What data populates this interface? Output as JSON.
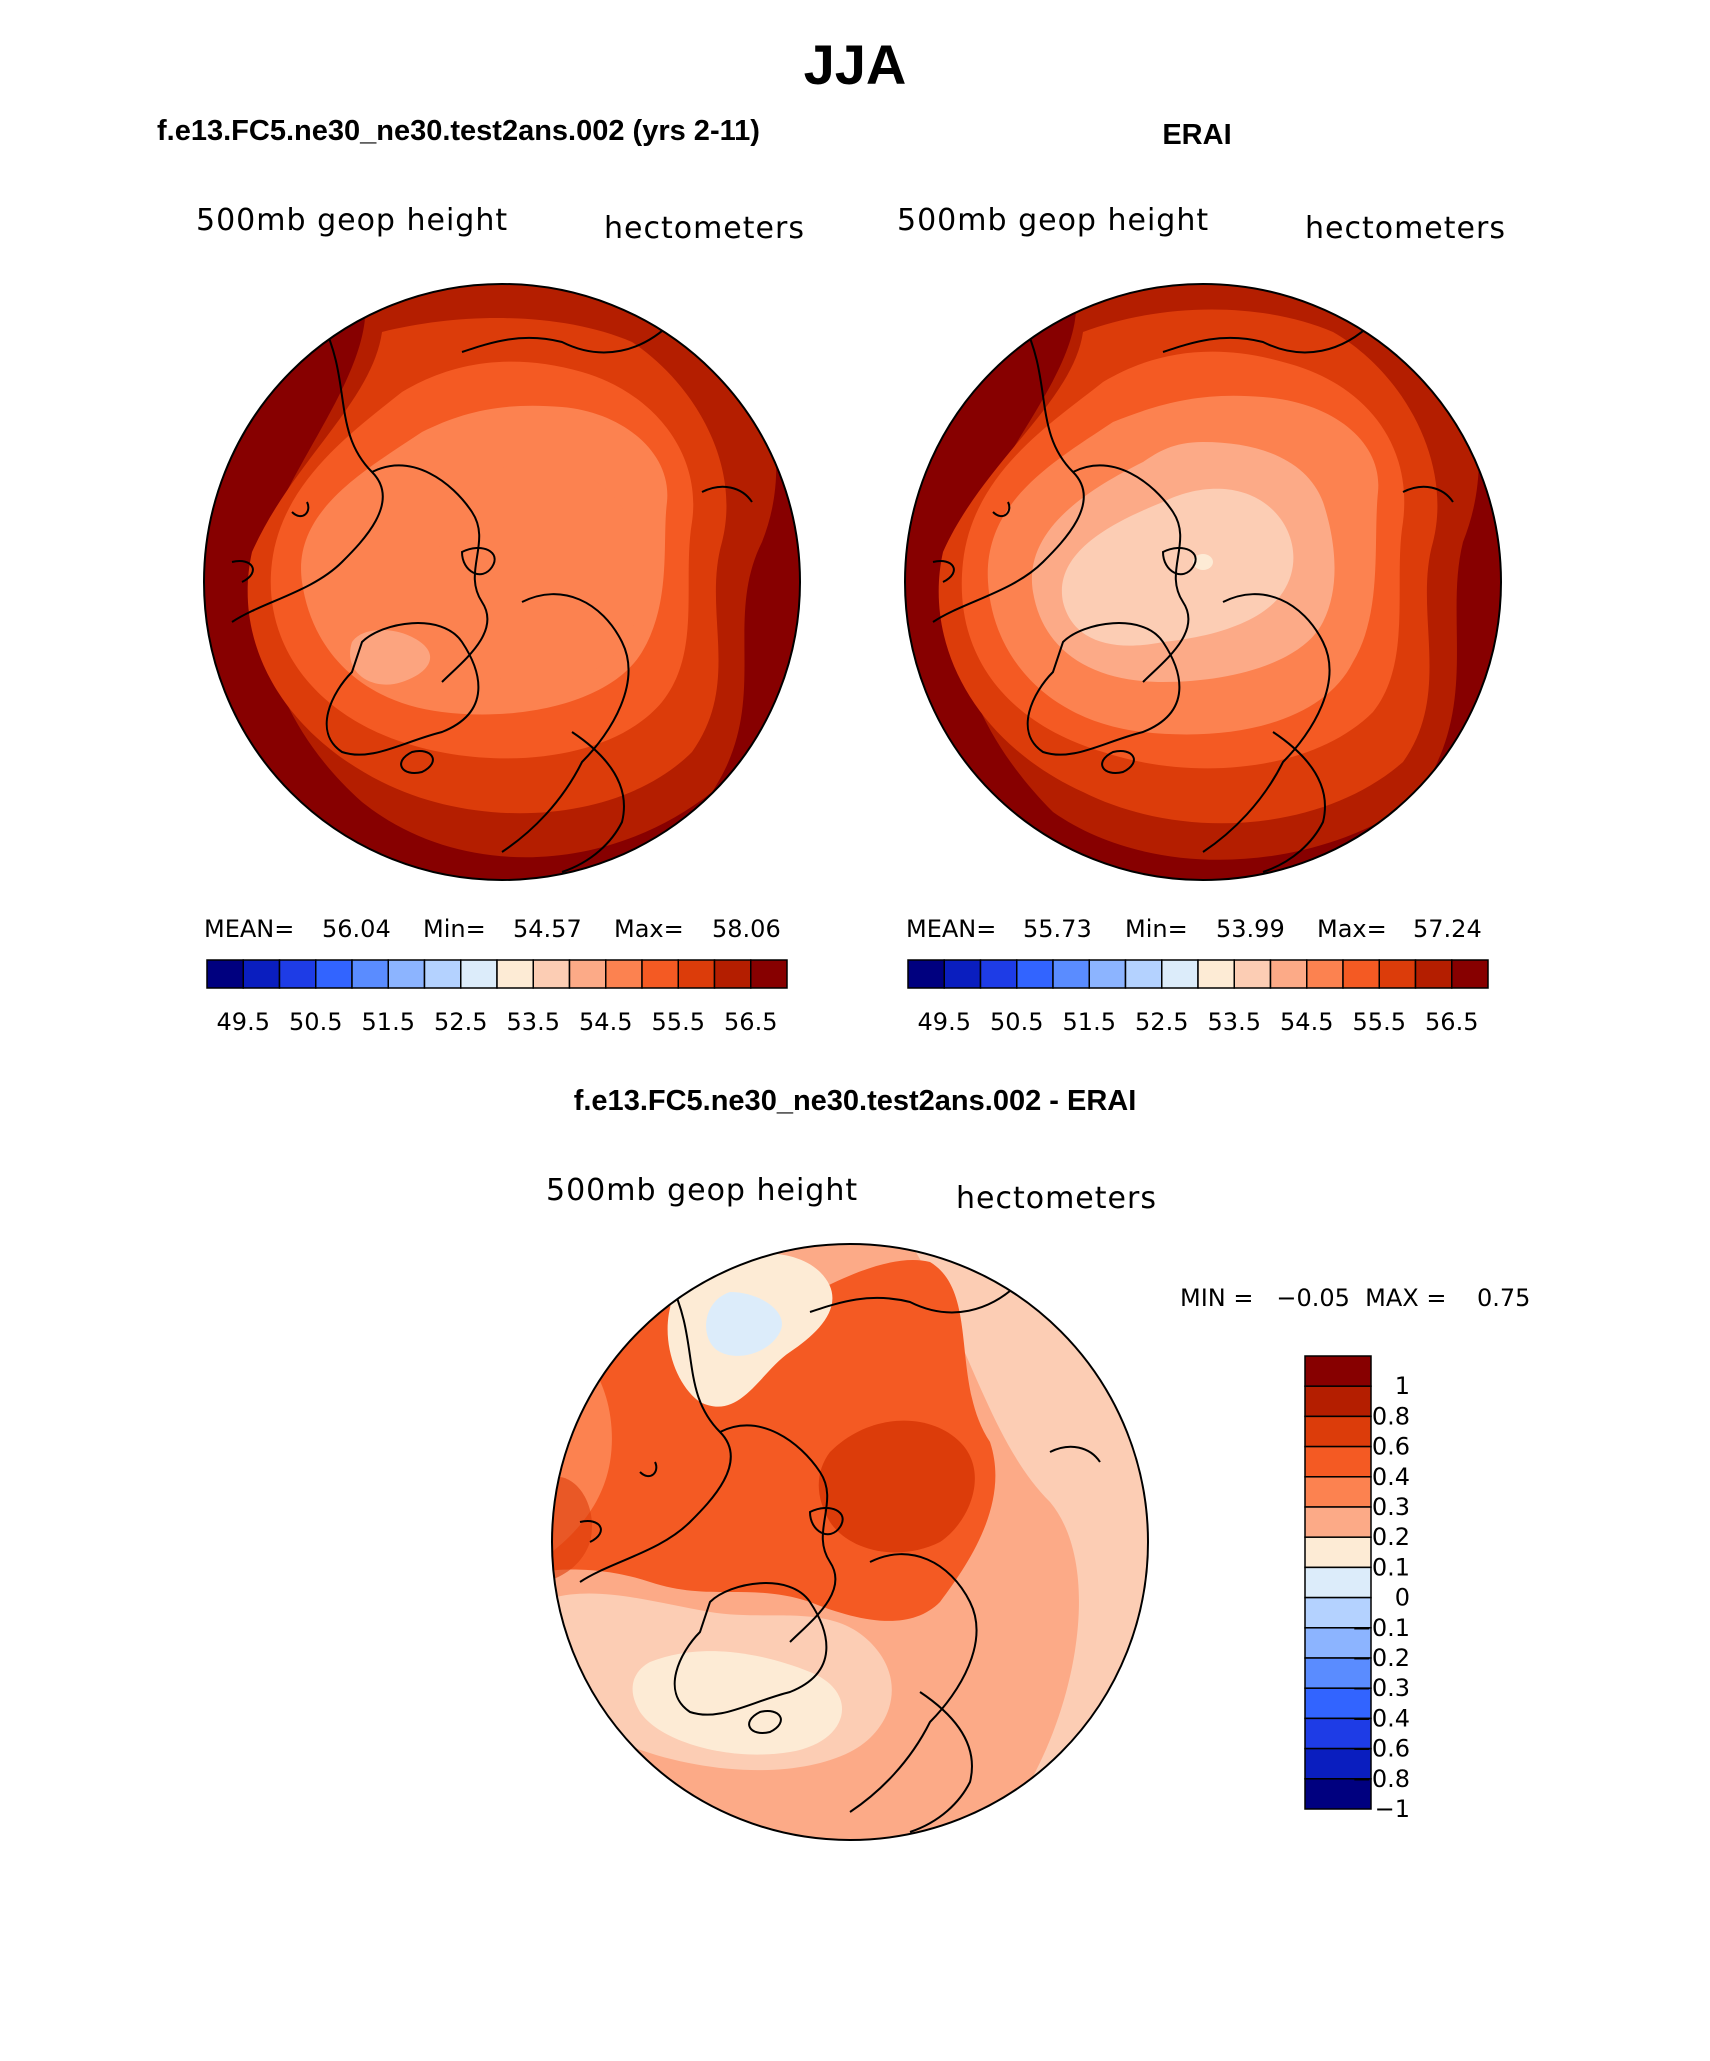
{
  "title": "JJA",
  "colors": {
    "abs_scale": [
      "#00007f",
      "#0a1ebf",
      "#1e3ce6",
      "#3264ff",
      "#5a8cff",
      "#8cb4ff",
      "#b4d2ff",
      "#dcecfa",
      "#fdebd5",
      "#fccdb4",
      "#fcaa87",
      "#fc8250",
      "#f45a23",
      "#dc3c0a",
      "#b41e00",
      "#870000"
    ],
    "diff_scale": [
      "#870000",
      "#b41e00",
      "#dc3c0a",
      "#f45a23",
      "#fc8250",
      "#fcaa87",
      "#fdebd5",
      "#dcecfa",
      "#b4d2ff",
      "#8cb4ff",
      "#5a8cff",
      "#3264ff",
      "#1e3ce6",
      "#0a1ebf",
      "#00007f"
    ]
  },
  "panels": {
    "model": {
      "case": "f.e13.FC5.ne30_ne30.test2ans.002 (yrs 2-11)",
      "field": "500mb geop height",
      "units": "hectometers",
      "mean_label": "MEAN=",
      "mean": "56.04",
      "min_label": "Min=",
      "min": "54.57",
      "max_label": "Max=",
      "max": "58.06",
      "ticks": [
        "49.5",
        "50.5",
        "51.5",
        "52.5",
        "53.5",
        "54.5",
        "55.5",
        "56.5"
      ]
    },
    "obs": {
      "case": "ERAI",
      "field": "500mb geop height",
      "units": "hectometers",
      "mean_label": "MEAN=",
      "mean": "55.73",
      "min_label": "Min=",
      "min": "53.99",
      "max_label": "Max=",
      "max": "57.24",
      "ticks": [
        "49.5",
        "50.5",
        "51.5",
        "52.5",
        "53.5",
        "54.5",
        "55.5",
        "56.5"
      ]
    },
    "diff": {
      "case": "f.e13.FC5.ne30_ne30.test2ans.002 - ERAI",
      "field": "500mb geop height",
      "units": "hectometers",
      "minmax": "MIN =   −0.05  MAX =    0.75",
      "ticks": [
        "1",
        "0.8",
        "0.6",
        "0.4",
        "0.3",
        "0.2",
        "0.1",
        "0",
        "−0.1",
        "−0.2",
        "−0.3",
        "−0.4",
        "−0.6",
        "−0.8",
        "−1"
      ]
    }
  }
}
